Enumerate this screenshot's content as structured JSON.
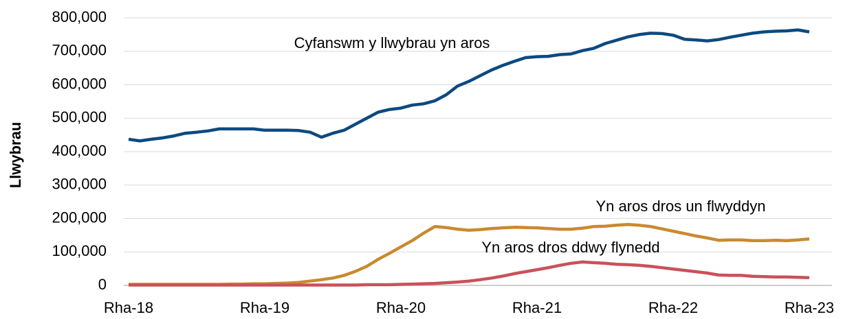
{
  "chart_data": {
    "type": "line",
    "y_label": "Llwybrau",
    "categories": [
      "Rha-18",
      null,
      null,
      null,
      null,
      null,
      null,
      null,
      null,
      null,
      null,
      null,
      "Rha-19",
      null,
      null,
      null,
      null,
      null,
      null,
      null,
      null,
      null,
      null,
      null,
      "Rha-20",
      null,
      null,
      null,
      null,
      null,
      null,
      null,
      null,
      null,
      null,
      null,
      "Rha-21",
      null,
      null,
      null,
      null,
      null,
      null,
      null,
      null,
      null,
      null,
      null,
      "Rha-22",
      null,
      null,
      null,
      null,
      null,
      null,
      null,
      null,
      null,
      null,
      null,
      "Rha-23"
    ],
    "series": [
      {
        "name": "Cyfanswm y llwybrau yn aros",
        "color": "#0b4a80",
        "values": [
          437000,
          432000,
          437000,
          441000,
          447000,
          455000,
          458000,
          462000,
          468000,
          468000,
          468000,
          468000,
          464000,
          464000,
          464000,
          463000,
          458000,
          443000,
          455000,
          464000,
          482000,
          500000,
          518000,
          526000,
          530000,
          539000,
          543000,
          552000,
          570000,
          596000,
          610000,
          627000,
          644000,
          658000,
          670000,
          681000,
          684000,
          685000,
          690000,
          692000,
          702000,
          709000,
          723000,
          733000,
          743000,
          750000,
          754000,
          753000,
          748000,
          736000,
          734000,
          731000,
          735000,
          742000,
          748000,
          754000,
          758000,
          760000,
          761000,
          764000,
          758000
        ]
      },
      {
        "name": "Yn aros dros un flwyddyn",
        "color": "#c98a2e",
        "values": [
          3000,
          3000,
          3000,
          3000,
          3000,
          3000,
          3000,
          3000,
          3000,
          4000,
          4000,
          5000,
          5000,
          6000,
          7000,
          9000,
          13000,
          17000,
          22000,
          30000,
          42000,
          57000,
          78000,
          96000,
          115000,
          134000,
          156000,
          176000,
          173000,
          168000,
          165000,
          167000,
          170000,
          172000,
          174000,
          173000,
          172000,
          170000,
          168000,
          168000,
          171000,
          176000,
          177000,
          180000,
          182000,
          180000,
          176000,
          169000,
          162000,
          155000,
          148000,
          142000,
          135000,
          136000,
          136000,
          134000,
          134000,
          135000,
          134000,
          136000,
          139000
        ]
      },
      {
        "name": "Yn aros dros ddwy flynedd",
        "color": "#c8525a",
        "values": [
          1000,
          1000,
          1000,
          1000,
          1000,
          1000,
          1000,
          1000,
          1000,
          1000,
          1000,
          1000,
          1000,
          1000,
          1000,
          1000,
          1000,
          1000,
          1000,
          1000,
          1000,
          2000,
          2000,
          2000,
          3000,
          4000,
          5000,
          6000,
          8000,
          10000,
          13000,
          17000,
          22000,
          28000,
          35000,
          41000,
          47000,
          53000,
          60000,
          66000,
          70000,
          68000,
          66000,
          63000,
          62000,
          60000,
          57000,
          53000,
          49000,
          45000,
          41000,
          37000,
          31000,
          30000,
          30000,
          27000,
          26000,
          25000,
          25000,
          24000,
          23000
        ]
      }
    ],
    "ylim": [
      0,
      800000
    ],
    "yticks": [
      0,
      {
        "value": 100000,
        "label": "100,000"
      },
      {
        "value": 200000,
        "label": "200,000"
      },
      {
        "value": 300000,
        "label": "300,000"
      },
      {
        "value": 400000,
        "label": "400,000"
      },
      {
        "value": 500000,
        "label": "500,000"
      },
      {
        "value": 600000,
        "label": "600,000"
      },
      {
        "value": 700000,
        "label": "700,000"
      },
      {
        "value": 800000,
        "label": "800,000"
      }
    ],
    "grid": true
  }
}
